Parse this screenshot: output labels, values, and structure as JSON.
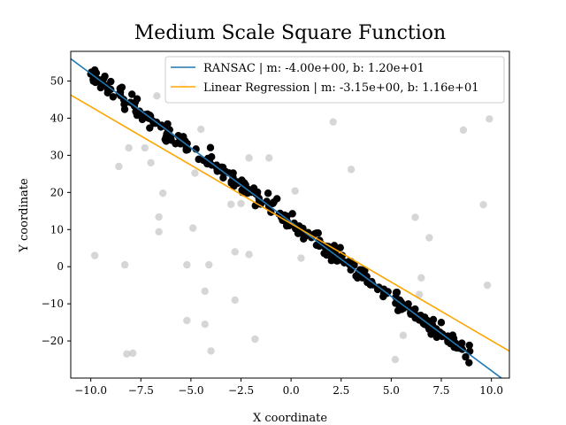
{
  "chart_data": {
    "type": "scatter",
    "title": "Medium Scale Square Function",
    "xlabel": "X coordinate",
    "ylabel": "Y coordinate",
    "xlim": [
      -11.0,
      10.9
    ],
    "ylim": [
      -30.0,
      58.0
    ],
    "xticks": [
      -10.0,
      -7.5,
      -5.0,
      -2.5,
      0.0,
      2.5,
      5.0,
      7.5,
      10.0
    ],
    "xtick_labels": [
      "−10.0",
      "−7.5",
      "−5.0",
      "−2.5",
      "0.0",
      "2.5",
      "5.0",
      "7.5",
      "10.0"
    ],
    "yticks": [
      -20,
      -10,
      0,
      10,
      20,
      30,
      40,
      50
    ],
    "ytick_labels": [
      "−20",
      "−10",
      "0",
      "10",
      "20",
      "30",
      "40",
      "50"
    ],
    "grid": false,
    "legend_position": "top-right",
    "lines": [
      {
        "name": "RANSAC | m: -4.00e+00, b: 1.20e+01",
        "slope": -4.0,
        "intercept": 12.0,
        "color": "#1f77b4"
      },
      {
        "name": "Linear Regression | m: -3.15e+00, b: 1.16e+01",
        "slope": -3.15,
        "intercept": 11.6,
        "color": "#ffa500"
      }
    ],
    "inliers": {
      "color": "#000000",
      "x_range": [
        -10.0,
        9.0
      ],
      "count": 300,
      "slope": -4.0,
      "intercept": 12.0,
      "noise": 1.2
    },
    "outliers": {
      "color": "#c8c8c8",
      "points": [
        [
          -9.8,
          3.0
        ],
        [
          -8.6,
          27.0
        ],
        [
          -8.3,
          0.5
        ],
        [
          -8.1,
          32.0
        ],
        [
          -8.2,
          -23.5
        ],
        [
          -7.9,
          -23.3
        ],
        [
          -7.3,
          32.0
        ],
        [
          -7.0,
          28.0
        ],
        [
          -6.7,
          46.0
        ],
        [
          -6.6,
          9.4
        ],
        [
          -6.6,
          13.4
        ],
        [
          -6.4,
          19.8
        ],
        [
          -5.4,
          49.2
        ],
        [
          -5.2,
          0.5
        ],
        [
          -5.2,
          -14.5
        ],
        [
          -4.9,
          10.4
        ],
        [
          -4.8,
          25.2
        ],
        [
          -4.5,
          37.0
        ],
        [
          -4.3,
          -6.6
        ],
        [
          -4.3,
          -15.5
        ],
        [
          -4.1,
          0.5
        ],
        [
          -4.0,
          -22.7
        ],
        [
          -3.0,
          16.8
        ],
        [
          -2.8,
          4.0
        ],
        [
          -2.8,
          -9.0
        ],
        [
          -2.5,
          17.0
        ],
        [
          -2.1,
          29.3
        ],
        [
          -2.1,
          3.3
        ],
        [
          -1.8,
          -19.5
        ],
        [
          -1.1,
          29.3
        ],
        [
          0.2,
          20.4
        ],
        [
          0.5,
          2.3
        ],
        [
          2.1,
          39.0
        ],
        [
          3.0,
          26.2
        ],
        [
          5.2,
          -25.0
        ],
        [
          5.6,
          -18.5
        ],
        [
          6.2,
          13.3
        ],
        [
          6.5,
          -3.0
        ],
        [
          6.9,
          7.8
        ],
        [
          6.4,
          -7.5
        ],
        [
          8.6,
          36.8
        ],
        [
          9.6,
          16.7
        ],
        [
          9.8,
          -5.0
        ],
        [
          9.9,
          39.8
        ]
      ]
    },
    "seed": 7
  }
}
